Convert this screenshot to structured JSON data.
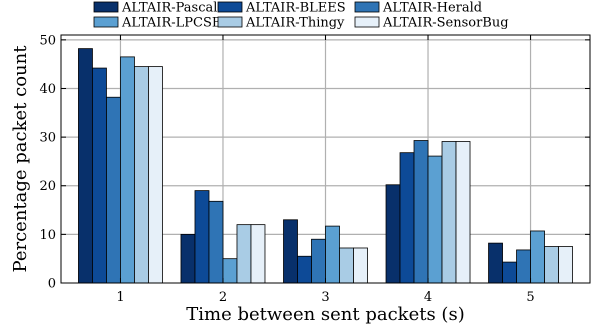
{
  "chart_data": {
    "type": "bar",
    "categories": [
      "1",
      "2",
      "3",
      "4",
      "5"
    ],
    "xlabel": "Time between sent packets (s)",
    "ylabel": "Percentage packet count",
    "ylim": [
      0,
      51
    ],
    "yticks": [
      0,
      10,
      20,
      30,
      40,
      50
    ],
    "grid": true,
    "legend_position": "top",
    "series": [
      {
        "name": "ALTAIR-Pascal",
        "color": "#08306b",
        "values": [
          48.2,
          10.0,
          13.0,
          20.2,
          8.2
        ]
      },
      {
        "name": "ALTAIR-BLEES",
        "color": "#0d4a97",
        "values": [
          44.2,
          19.0,
          5.5,
          26.8,
          4.3
        ]
      },
      {
        "name": "ALTAIR-Herald",
        "color": "#2f74b5",
        "values": [
          38.2,
          16.8,
          9.0,
          29.3,
          6.8
        ]
      },
      {
        "name": "ALTAIR-LPCSB",
        "color": "#5ba0d2",
        "values": [
          46.5,
          5.0,
          11.7,
          26.1,
          10.7
        ]
      },
      {
        "name": "ALTAIR-Thingy",
        "color": "#a9cce5",
        "values": [
          44.5,
          12.0,
          7.2,
          29.1,
          7.5
        ]
      },
      {
        "name": "ALTAIR-SensorBug",
        "color": "#e6f0f9",
        "values": [
          44.5,
          12.0,
          7.2,
          29.1,
          7.5
        ]
      }
    ]
  }
}
